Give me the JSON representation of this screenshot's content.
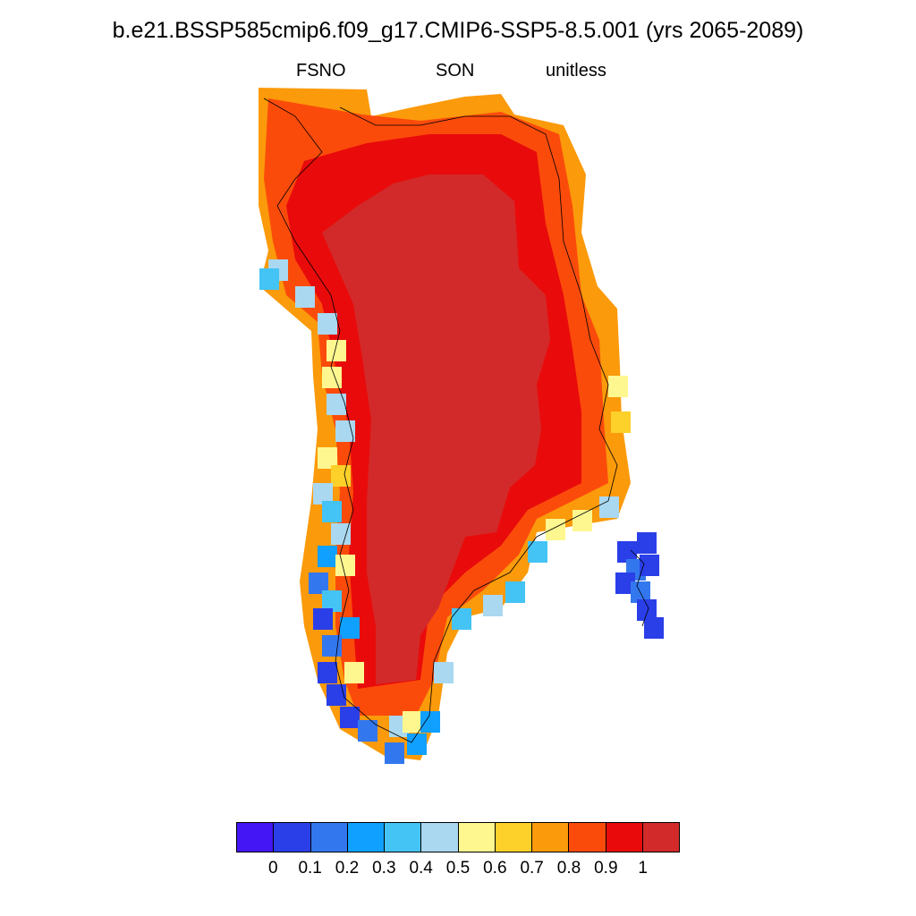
{
  "title": "b.e21.BSSP585cmip6.f09_g17.CMIP6-SSP5-8.5.001 (yrs 2065-2089)",
  "subtitle": {
    "left": "FSNO",
    "center": "SON",
    "right": "unitless"
  },
  "colorbar": {
    "colors": [
      "#4416f5",
      "#2a3fe8",
      "#3377ee",
      "#10a0ff",
      "#44c3f5",
      "#aad8f0",
      "#fef790",
      "#fdd02a",
      "#fb9a0a",
      "#fb4b0b",
      "#e90b0b",
      "#d22a2a"
    ],
    "labels": [
      "0",
      "0.1",
      "0.2",
      "0.3",
      "0.4",
      "0.5",
      "0.6",
      "0.7",
      "0.8",
      "0.9",
      "1"
    ]
  },
  "map": {
    "region": "Greenland",
    "land_color": "#d22a2a"
  }
}
